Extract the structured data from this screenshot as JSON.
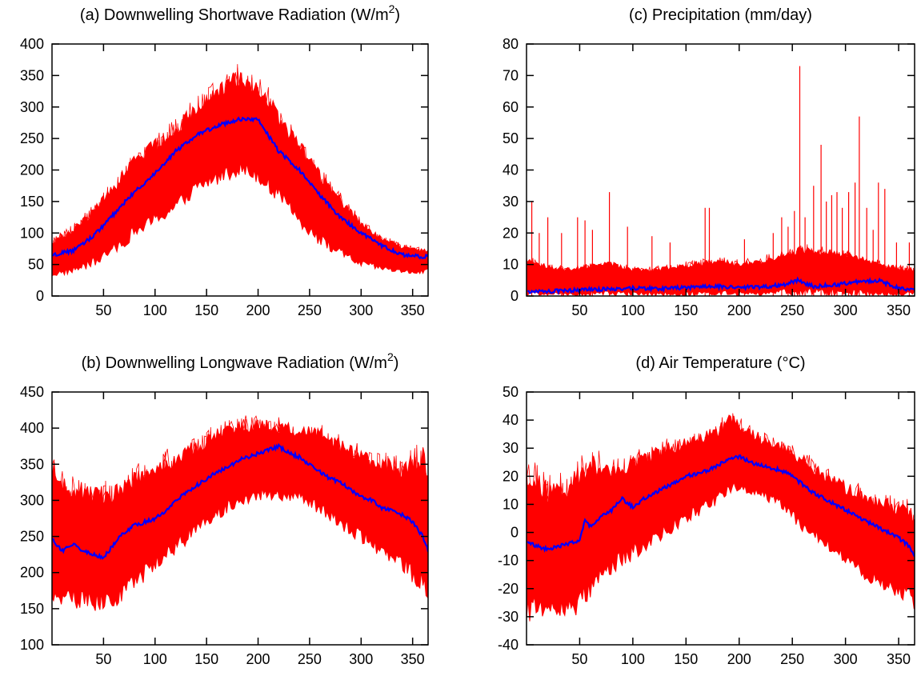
{
  "chart_data": [
    {
      "type": "line",
      "title": "(a) Downwelling Shortwave Radiation (W/m",
      "title_sup": "2",
      "title_close": ")",
      "xlim": [
        0,
        365
      ],
      "ylim": [
        0,
        400
      ],
      "xticks": [
        50,
        100,
        150,
        200,
        250,
        300,
        350
      ],
      "yticks": [
        0,
        50,
        100,
        150,
        200,
        250,
        300,
        350,
        400
      ],
      "xtick_labels": [
        "50",
        "100",
        "150",
        "200",
        "250",
        "300",
        "350"
      ],
      "ytick_labels": [
        "0",
        "50",
        "100",
        "150",
        "200",
        "250",
        "300",
        "350",
        "400"
      ],
      "colors": {
        "ensemble": "#ff0000",
        "mean": "#0000ff"
      },
      "series": [
        {
          "role": "ensemble-envelope",
          "x": [
            1,
            20,
            40,
            60,
            80,
            100,
            120,
            140,
            160,
            180,
            200,
            212,
            220,
            240,
            260,
            280,
            300,
            320,
            340,
            360,
            365
          ],
          "upper": [
            90,
            110,
            140,
            180,
            230,
            250,
            275,
            310,
            335,
            360,
            345,
            320,
            290,
            250,
            200,
            160,
            120,
            95,
            80,
            75,
            75
          ],
          "lower": [
            30,
            35,
            45,
            65,
            90,
            110,
            130,
            160,
            175,
            190,
            180,
            160,
            150,
            110,
            80,
            60,
            45,
            40,
            35,
            35,
            40
          ]
        },
        {
          "role": "mean",
          "x": [
            1,
            20,
            40,
            60,
            80,
            100,
            120,
            140,
            160,
            180,
            200,
            212,
            220,
            240,
            260,
            280,
            300,
            320,
            340,
            360,
            365
          ],
          "values": [
            65,
            72,
            95,
            130,
            165,
            195,
            230,
            255,
            270,
            280,
            280,
            250,
            230,
            200,
            160,
            125,
            100,
            80,
            65,
            62,
            65
          ]
        }
      ]
    },
    {
      "type": "line",
      "title": "(c) Precipitation (mm/day)",
      "xlim": [
        0,
        365
      ],
      "ylim": [
        0,
        80
      ],
      "xticks": [
        50,
        100,
        150,
        200,
        250,
        300,
        350
      ],
      "yticks": [
        0,
        10,
        20,
        30,
        40,
        50,
        60,
        70,
        80
      ],
      "xtick_labels": [
        "50",
        "100",
        "150",
        "200",
        "250",
        "300",
        "350"
      ],
      "ytick_labels": [
        "0",
        "10",
        "20",
        "30",
        "40",
        "50",
        "60",
        "70",
        "80"
      ],
      "colors": {
        "ensemble": "#ff0000",
        "mean": "#0000ff"
      },
      "series": [
        {
          "role": "ensemble-envelope",
          "x": [
            1,
            20,
            40,
            60,
            80,
            100,
            120,
            140,
            160,
            180,
            200,
            220,
            240,
            260,
            280,
            300,
            320,
            340,
            365
          ],
          "upper": [
            12,
            10,
            9,
            10,
            11,
            9,
            9,
            10,
            11,
            12,
            11,
            12,
            14,
            16,
            15,
            14,
            12,
            10,
            9
          ],
          "lower": [
            0,
            0,
            0,
            0,
            0,
            0,
            0,
            0,
            0,
            0,
            0,
            0,
            0,
            0,
            0,
            0,
            0,
            0,
            0
          ]
        },
        {
          "role": "spikes",
          "x": [
            5,
            12,
            20,
            33,
            48,
            55,
            62,
            78,
            95,
            118,
            135,
            168,
            172,
            205,
            232,
            240,
            246,
            252,
            257,
            262,
            270,
            277,
            282,
            287,
            292,
            297,
            303,
            309,
            313,
            320,
            326,
            331,
            337,
            348,
            360
          ],
          "values": [
            30,
            20,
            25,
            20,
            25,
            24,
            21,
            33,
            22,
            19,
            17,
            28,
            28,
            18,
            20,
            25,
            22,
            27,
            73,
            25,
            35,
            48,
            30,
            32,
            33,
            28,
            33,
            36,
            57,
            28,
            21,
            36,
            34,
            17,
            17
          ]
        },
        {
          "role": "mean",
          "x": [
            1,
            20,
            40,
            60,
            80,
            100,
            120,
            140,
            160,
            180,
            200,
            220,
            240,
            255,
            270,
            290,
            310,
            330,
            350,
            365
          ],
          "values": [
            1.5,
            1.5,
            1.8,
            2,
            2.2,
            2.5,
            2.3,
            2.5,
            2.8,
            3,
            2.8,
            2.8,
            3.5,
            5,
            3,
            3.5,
            4.5,
            5,
            2.5,
            2
          ]
        }
      ]
    },
    {
      "type": "line",
      "title": "(b) Downwelling Longwave Radiation (W/m",
      "title_sup": "2",
      "title_close": ")",
      "xlim": [
        0,
        365
      ],
      "ylim": [
        100,
        450
      ],
      "xticks": [
        50,
        100,
        150,
        200,
        250,
        300,
        350
      ],
      "yticks": [
        100,
        150,
        200,
        250,
        300,
        350,
        400,
        450
      ],
      "xtick_labels": [
        "50",
        "100",
        "150",
        "200",
        "250",
        "300",
        "350"
      ],
      "ytick_labels": [
        "100",
        "150",
        "200",
        "250",
        "300",
        "350",
        "400",
        "450"
      ],
      "colors": {
        "ensemble": "#ff0000",
        "mean": "#0000ff"
      },
      "series": [
        {
          "role": "ensemble-envelope",
          "x": [
            1,
            20,
            40,
            60,
            80,
            100,
            120,
            140,
            160,
            180,
            200,
            220,
            240,
            260,
            280,
            300,
            320,
            340,
            360,
            365
          ],
          "upper": [
            350,
            330,
            320,
            320,
            340,
            355,
            370,
            385,
            400,
            410,
            415,
            410,
            405,
            400,
            385,
            370,
            360,
            355,
            375,
            350
          ],
          "lower": [
            160,
            150,
            145,
            150,
            175,
            200,
            225,
            250,
            270,
            290,
            300,
            300,
            295,
            280,
            260,
            240,
            220,
            200,
            170,
            160
          ]
        },
        {
          "role": "mean",
          "x": [
            1,
            10,
            20,
            30,
            40,
            50,
            60,
            70,
            80,
            90,
            100,
            110,
            120,
            130,
            140,
            150,
            160,
            170,
            180,
            190,
            200,
            210,
            220,
            230,
            240,
            250,
            260,
            270,
            280,
            290,
            300,
            310,
            320,
            330,
            340,
            350,
            360,
            365
          ],
          "values": [
            245,
            230,
            240,
            230,
            225,
            220,
            240,
            255,
            265,
            270,
            275,
            285,
            300,
            310,
            320,
            330,
            340,
            345,
            355,
            360,
            365,
            370,
            375,
            365,
            360,
            350,
            340,
            330,
            325,
            315,
            305,
            300,
            290,
            285,
            280,
            270,
            250,
            230
          ]
        }
      ]
    },
    {
      "type": "line",
      "title": "(d) Air Temperature (°C)",
      "xlim": [
        0,
        365
      ],
      "ylim": [
        -40,
        50
      ],
      "xticks": [
        50,
        100,
        150,
        200,
        250,
        300,
        350
      ],
      "yticks": [
        -40,
        -30,
        -20,
        -10,
        0,
        10,
        20,
        30,
        40,
        50
      ],
      "xtick_labels": [
        "50",
        "100",
        "150",
        "200",
        "250",
        "300",
        "350"
      ],
      "ytick_labels": [
        "-40",
        "-30",
        "-20",
        "-10",
        "0",
        "10",
        "20",
        "30",
        "40",
        "50"
      ],
      "colors": {
        "ensemble": "#ff0000",
        "mean": "#0000ff"
      },
      "series": [
        {
          "role": "ensemble-envelope",
          "x": [
            1,
            20,
            40,
            60,
            80,
            100,
            120,
            140,
            160,
            180,
            190,
            200,
            220,
            240,
            260,
            280,
            300,
            320,
            340,
            360,
            365
          ],
          "upper": [
            25,
            18,
            20,
            28,
            25,
            28,
            30,
            33,
            35,
            38,
            43,
            40,
            35,
            32,
            28,
            22,
            18,
            15,
            12,
            10,
            8
          ],
          "lower": [
            -32,
            -30,
            -32,
            -25,
            -15,
            -10,
            -5,
            0,
            5,
            10,
            12,
            15,
            12,
            8,
            0,
            -5,
            -12,
            -18,
            -22,
            -25,
            -30
          ]
        },
        {
          "role": "mean",
          "x": [
            1,
            10,
            20,
            30,
            40,
            50,
            55,
            60,
            70,
            80,
            90,
            100,
            110,
            120,
            130,
            140,
            150,
            160,
            170,
            180,
            190,
            200,
            210,
            220,
            230,
            240,
            250,
            260,
            270,
            280,
            290,
            300,
            310,
            320,
            330,
            340,
            350,
            360,
            365
          ],
          "values": [
            -3,
            -5,
            -6,
            -5,
            -4,
            -3,
            5,
            2,
            6,
            8,
            12,
            9,
            12,
            14,
            16,
            18,
            20,
            21,
            22,
            24,
            26,
            27,
            25,
            24,
            23,
            22,
            20,
            17,
            14,
            12,
            10,
            8,
            6,
            4,
            2,
            0,
            -2,
            -5,
            -8
          ]
        }
      ]
    }
  ]
}
